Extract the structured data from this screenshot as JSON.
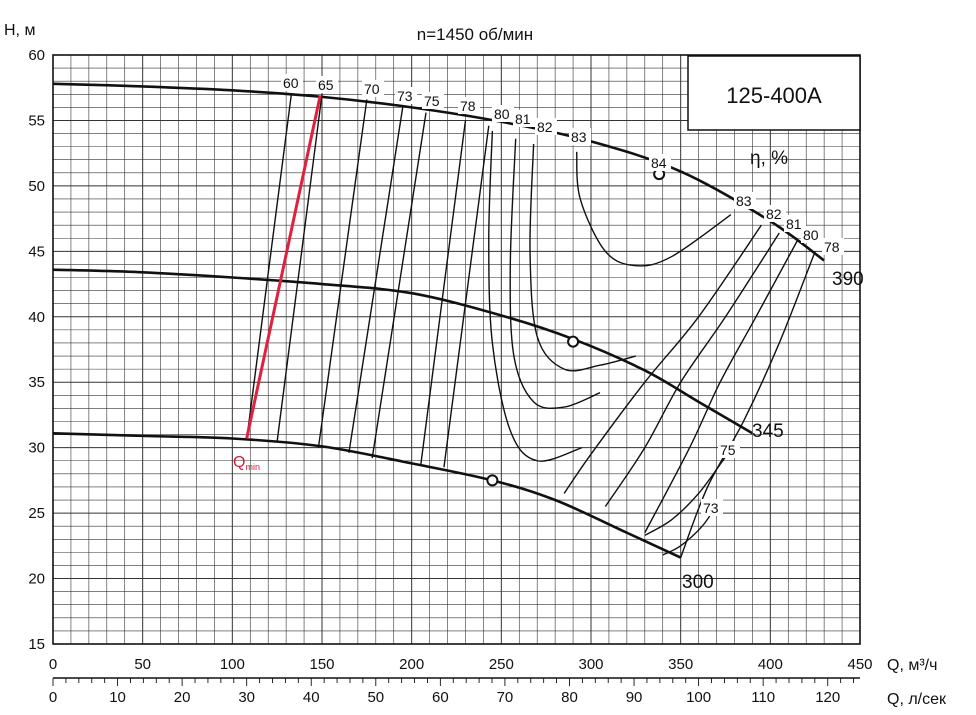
{
  "chart_data": {
    "type": "line",
    "title": "n=1450 об/мин",
    "model": "125-400A",
    "ylabel": "H, м",
    "xlabel": "Q, м³/ч",
    "x2label": "Q, л/сек",
    "efficiency_label": "η, %",
    "qmin_label": "Q",
    "qmin_sub": "min",
    "xlim": [
      0,
      450
    ],
    "ylim": [
      15,
      60
    ],
    "x_ticks": [
      "0",
      "50",
      "100",
      "150",
      "200",
      "250",
      "300",
      "350",
      "400",
      "450"
    ],
    "y_ticks": [
      "15",
      "20",
      "25",
      "30",
      "35",
      "40",
      "45",
      "50",
      "55",
      "60"
    ],
    "x2_ticks": [
      "0",
      "10",
      "20",
      "30",
      "40",
      "50",
      "60",
      "70",
      "80",
      "90",
      "100",
      "110",
      "120"
    ],
    "grid": true,
    "series": [
      {
        "name": "390",
        "x": [
          0,
          50,
          100,
          150,
          200,
          250,
          300,
          350,
          400,
          430
        ],
        "y": [
          57.8,
          57.6,
          57.3,
          56.8,
          56.0,
          54.9,
          53.4,
          51.1,
          47.3,
          44.3
        ]
      },
      {
        "name": "345",
        "x": [
          0,
          50,
          100,
          150,
          200,
          250,
          290,
          330,
          360,
          390
        ],
        "y": [
          43.6,
          43.4,
          43.0,
          42.5,
          41.8,
          40.1,
          38.3,
          35.9,
          33.5,
          31.1
        ]
      },
      {
        "name": "300",
        "x": [
          0,
          50,
          100,
          150,
          200,
          245,
          280,
          320,
          350
        ],
        "y": [
          31.1,
          30.9,
          30.7,
          30.1,
          28.8,
          27.5,
          26.0,
          23.5,
          21.6
        ]
      }
    ],
    "duty_points": [
      {
        "x": 338,
        "y": 50.9
      },
      {
        "x": 290,
        "y": 38.1
      },
      {
        "x": 245,
        "y": 27.5
      }
    ],
    "qmin_line": {
      "x": [
        108,
        149
      ],
      "y": [
        30.7,
        56.9
      ]
    },
    "efficiency_lines": [
      {
        "label": "60",
        "x": [
          107,
          133
        ],
        "y": [
          30.6,
          57.1
        ]
      },
      {
        "label": "65",
        "x": [
          124,
          152
        ],
        "y": [
          30.5,
          56.9
        ]
      },
      {
        "label": "70",
        "x": [
          148,
          178
        ],
        "y": [
          30.0,
          56.4
        ]
      },
      {
        "label": "73",
        "x": [
          165,
          195
        ],
        "y": [
          29.6,
          55.9
        ]
      },
      {
        "label": "75",
        "x": [
          178,
          208
        ],
        "y": [
          29.3,
          55.5
        ]
      },
      {
        "label": "78",
        "x": [
          205,
          230
        ],
        "y": [
          28.6,
          54.9
        ]
      },
      {
        "label": "80",
        "x": [
          247,
          258
        ],
        "y": null
      },
      {
        "label": "81",
        "x": [
          262
        ],
        "y": null
      },
      {
        "label": "82",
        "x": [
          272
        ],
        "y": null
      },
      {
        "label": "83",
        "x": [
          292
        ],
        "y": null
      },
      {
        "label": "84",
        "x": [
          338
        ],
        "y": [
          50.9
        ]
      },
      {
        "label": "75",
        "x": [
          375
        ],
        "y": [
          29.0
        ]
      },
      {
        "label": "73",
        "x": [
          370
        ],
        "y": [
          25.5
        ]
      }
    ],
    "efficiency_label_values": [
      "60",
      "65",
      "70",
      "73",
      "75",
      "78",
      "80",
      "81",
      "82",
      "83",
      "84",
      "83",
      "82",
      "81",
      "80",
      "78",
      "75",
      "73"
    ],
    "curve_label_values": [
      "390",
      "345",
      "300"
    ]
  }
}
